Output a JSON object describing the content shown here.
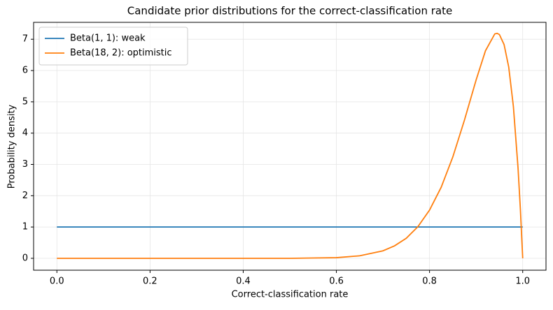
{
  "chart_data": {
    "type": "line",
    "title": "Candidate prior distributions for the correct-classification rate",
    "xlabel": "Correct-classification rate",
    "ylabel": "Probability density",
    "xlim": [
      -0.05,
      1.05
    ],
    "ylim": [
      -0.38,
      7.54
    ],
    "xticks": [
      {
        "value": 0,
        "label": "0.0"
      },
      {
        "value": 0.2,
        "label": "0.2"
      },
      {
        "value": 0.4,
        "label": "0.4"
      },
      {
        "value": 0.6,
        "label": "0.6"
      },
      {
        "value": 0.8,
        "label": "0.8"
      },
      {
        "value": 1,
        "label": "1.0"
      }
    ],
    "yticks": [
      0,
      1,
      2,
      3,
      4,
      5,
      6,
      7
    ],
    "grid": true,
    "legend": "upper left",
    "series": [
      {
        "name": "Beta(1, 1): weak",
        "color": "#1f77b4",
        "x": [
          0,
          1
        ],
        "values": [
          1,
          1
        ]
      },
      {
        "name": "Beta(18, 2): optimistic",
        "color": "#ff7f0e",
        "x": [
          0,
          0.1,
          0.2,
          0.3,
          0.4,
          0.5,
          0.55,
          0.6,
          0.65,
          0.7,
          0.725,
          0.75,
          0.775,
          0.8,
          0.825,
          0.85,
          0.875,
          0.9,
          0.92,
          0.94,
          0.945,
          0.95,
          0.96,
          0.97,
          0.98,
          0.99,
          0.995,
          1
        ],
        "values": [
          0,
          0,
          0,
          0,
          0,
          0,
          0.01,
          0.02,
          0.08,
          0.24,
          0.4,
          0.64,
          1.01,
          1.54,
          2.27,
          3.24,
          4.42,
          5.7,
          6.63,
          7.17,
          7.19,
          7.15,
          6.83,
          6.11,
          4.85,
          2.88,
          1.57,
          0
        ]
      }
    ]
  }
}
